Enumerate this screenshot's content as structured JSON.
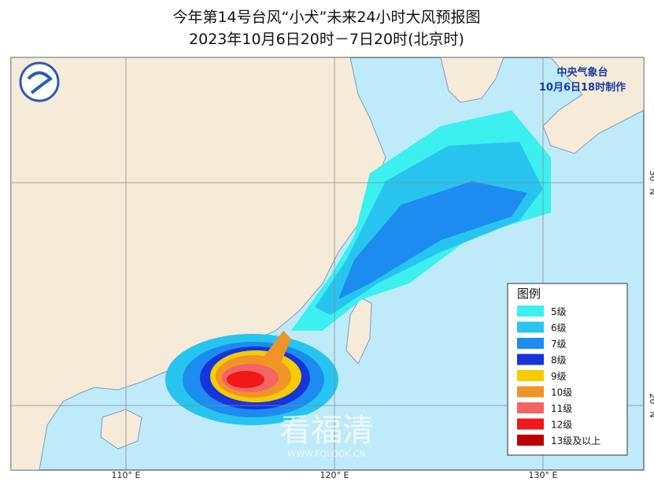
{
  "header": {
    "title": "今年第14号台风“小犬”未来24小时大风预报图",
    "subtitle": "2023年10月6日20时－7日20时(北京时)"
  },
  "issuer": {
    "agency": "中央气象台",
    "issued": "10月6日18时制作"
  },
  "graticule": {
    "lon_labels": [
      "110° E",
      "120° E",
      "130° E"
    ],
    "lat_labels": [
      "30° N",
      "20° N"
    ]
  },
  "legend": {
    "title": "图例",
    "items": [
      {
        "label": "5级",
        "color": "#3cf0f0"
      },
      {
        "label": "6级",
        "color": "#28c4f0"
      },
      {
        "label": "7级",
        "color": "#1c8cf0"
      },
      {
        "label": "8级",
        "color": "#1634dc"
      },
      {
        "label": "9级",
        "color": "#f4cc00"
      },
      {
        "label": "10级",
        "color": "#f09428"
      },
      {
        "label": "11级",
        "color": "#f46464"
      },
      {
        "label": "12级",
        "color": "#f01818"
      },
      {
        "label": "13级及以上",
        "color": "#bc0000"
      }
    ]
  },
  "watermark": {
    "name": "看福清",
    "url": "WWW.FQLOOK.CN"
  }
}
